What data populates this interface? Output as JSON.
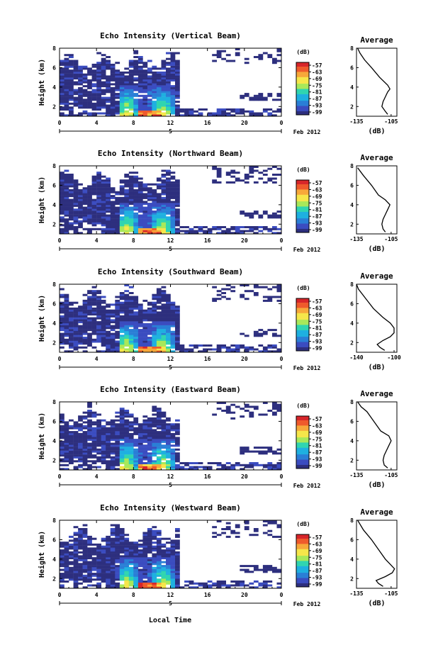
{
  "figure": {
    "xlabel_shared": "Local Time",
    "date_label": "Feb 2012",
    "colorbar_unit": "(dB)",
    "colorbar_ticks": [
      "-57",
      "-63",
      "-69",
      "-75",
      "-81",
      "-87",
      "-93",
      "-99"
    ],
    "colormap": [
      "#2d2f7e",
      "#3b4cc0",
      "#2a7fd6",
      "#1fb0e0",
      "#30d5b0",
      "#a8e85a",
      "#f6e64a",
      "#f7a83a",
      "#ef5a2c",
      "#d7262a"
    ],
    "side_title": "Average",
    "side_xlabel": "(dB)"
  },
  "chart_data": [
    {
      "type": "heatmap",
      "title": "Echo Intensity (Vertical Beam)",
      "ylabel": "Height (km)",
      "x_ticks": [
        "0",
        "4",
        "8",
        "12",
        "16",
        "20",
        "0"
      ],
      "day_label": "5",
      "y_ticks": [
        "2",
        "4",
        "6",
        "8"
      ],
      "xlim": [
        0,
        24
      ],
      "ylim": [
        1,
        8
      ],
      "clim": [
        -99,
        -57
      ],
      "profile": {
        "title": "Average",
        "x_ticks": [
          "-135",
          "-105"
        ],
        "xlim": [
          -135,
          -100
        ],
        "y_ticks": [
          "2",
          "4",
          "6",
          "8"
        ],
        "ylim": [
          1,
          8
        ],
        "height": [
          1.2,
          1.5,
          2.0,
          2.5,
          3.0,
          3.5,
          3.8,
          4.2,
          5.0,
          6.0,
          6.8,
          7.5,
          8.0
        ],
        "db": [
          -108,
          -110,
          -113,
          -112,
          -110,
          -108,
          -106,
          -108,
          -115,
          -122,
          -128,
          -132,
          -134
        ]
      }
    },
    {
      "type": "heatmap",
      "title": "Echo Intensity (Northward Beam)",
      "ylabel": "Height (km)",
      "x_ticks": [
        "0",
        "4",
        "8",
        "12",
        "16",
        "20",
        "0"
      ],
      "day_label": "5",
      "y_ticks": [
        "2",
        "4",
        "6",
        "8"
      ],
      "xlim": [
        0,
        24
      ],
      "ylim": [
        1,
        8
      ],
      "clim": [
        -99,
        -57
      ],
      "profile": {
        "title": "Average",
        "x_ticks": [
          "-135",
          "-105"
        ],
        "xlim": [
          -135,
          -100
        ],
        "y_ticks": [
          "2",
          "4",
          "6",
          "8"
        ],
        "ylim": [
          1,
          8
        ],
        "height": [
          1.2,
          1.5,
          2.0,
          2.5,
          3.0,
          3.5,
          4.0,
          4.5,
          5.0,
          6.0,
          7.0,
          7.8
        ],
        "db": [
          -110,
          -112,
          -113,
          -112,
          -110,
          -108,
          -106,
          -110,
          -116,
          -122,
          -129,
          -134
        ]
      }
    },
    {
      "type": "heatmap",
      "title": "Echo Intensity (Southward Beam)",
      "ylabel": "Height (km)",
      "x_ticks": [
        "0",
        "4",
        "8",
        "12",
        "16",
        "20",
        "0"
      ],
      "day_label": "5",
      "y_ticks": [
        "2",
        "4",
        "6",
        "8"
      ],
      "xlim": [
        0,
        24
      ],
      "ylim": [
        1,
        8
      ],
      "clim": [
        -99,
        -57
      ],
      "profile": {
        "title": "Average",
        "x_ticks": [
          "-140",
          "-100"
        ],
        "xlim": [
          -140,
          -97
        ],
        "y_ticks": [
          "2",
          "4",
          "6",
          "8"
        ],
        "ylim": [
          1,
          8
        ],
        "height": [
          1.2,
          1.5,
          1.8,
          2.2,
          2.6,
          3.0,
          3.5,
          4.0,
          4.6,
          5.5,
          6.5,
          7.5,
          8.0
        ],
        "db": [
          -110,
          -115,
          -118,
          -112,
          -104,
          -100,
          -100,
          -104,
          -112,
          -122,
          -130,
          -138,
          -140
        ]
      }
    },
    {
      "type": "heatmap",
      "title": "Echo Intensity (Eastward Beam)",
      "ylabel": "Height (km)",
      "x_ticks": [
        "0",
        "4",
        "8",
        "12",
        "16",
        "20",
        "0"
      ],
      "day_label": "5",
      "y_ticks": [
        "2",
        "4",
        "6",
        "8"
      ],
      "xlim": [
        0,
        24
      ],
      "ylim": [
        1,
        8
      ],
      "clim": [
        -99,
        -57
      ],
      "profile": {
        "title": "Average",
        "x_ticks": [
          "-135",
          "-105"
        ],
        "xlim": [
          -135,
          -100
        ],
        "y_ticks": [
          "2",
          "4",
          "6",
          "8"
        ],
        "ylim": [
          1,
          8
        ],
        "height": [
          1.2,
          1.5,
          2.0,
          2.5,
          3.0,
          3.5,
          4.0,
          4.5,
          5.0,
          6.0,
          7.0,
          7.5,
          8.0
        ],
        "db": [
          -108,
          -111,
          -112,
          -111,
          -109,
          -107,
          -105,
          -107,
          -114,
          -120,
          -126,
          -131,
          -134
        ]
      }
    },
    {
      "type": "heatmap",
      "title": "Echo Intensity (Westward Beam)",
      "ylabel": "Height (km)",
      "x_ticks": [
        "0",
        "4",
        "8",
        "12",
        "16",
        "20",
        "0"
      ],
      "day_label": "5",
      "y_ticks": [
        "2",
        "4",
        "6",
        "8"
      ],
      "xlim": [
        0,
        24
      ],
      "ylim": [
        1,
        8
      ],
      "clim": [
        -99,
        -57
      ],
      "profile": {
        "title": "Average",
        "x_ticks": [
          "-135",
          "-105"
        ],
        "xlim": [
          -135,
          -100
        ],
        "y_ticks": [
          "2",
          "4",
          "6",
          "8"
        ],
        "ylim": [
          1,
          8
        ],
        "height": [
          1.2,
          1.5,
          1.8,
          2.2,
          2.6,
          3.0,
          3.5,
          4.0,
          5.0,
          6.0,
          7.0,
          8.0
        ],
        "db": [
          -112,
          -116,
          -118,
          -110,
          -104,
          -102,
          -106,
          -110,
          -116,
          -122,
          -129,
          -134
        ]
      }
    }
  ]
}
